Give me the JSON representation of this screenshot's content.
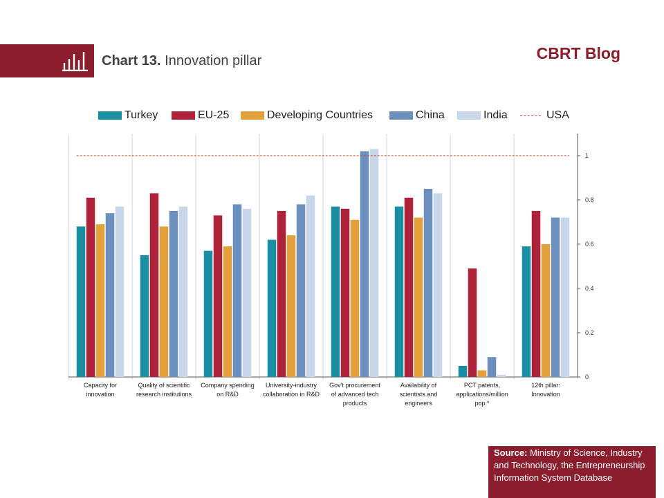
{
  "header": {
    "chart_number": "Chart 13.",
    "chart_name": "Innovation pillar",
    "brand": "CBRT Blog",
    "icon": "bar-chart-icon"
  },
  "colors": {
    "brand": "#8c1d2c",
    "turkey": "#1a8fa4",
    "eu25": "#b0223a",
    "developing": "#e4a03a",
    "china": "#6b90bd",
    "india": "#c7d6e8",
    "usa": "#c0392b"
  },
  "source": {
    "label": "Source:",
    "text": "Ministry of Science, Industry and Technology, the Entrepreneurship Information System Database"
  },
  "chart_data": {
    "type": "bar",
    "categories": [
      [
        "Capacity for",
        "innovation"
      ],
      [
        "Quality of scientific",
        "research institutions"
      ],
      [
        "Company spending",
        "on R&D"
      ],
      [
        "University-industry",
        "collaboration in R&D"
      ],
      [
        "Gov't procurement",
        "of advanced tech",
        "products"
      ],
      [
        "Availability of",
        "scientists and",
        "engineers"
      ],
      [
        "PCT patents,",
        "applications/million",
        "pop.*"
      ],
      [
        "12th pillar:",
        "Innovation"
      ]
    ],
    "series": [
      {
        "name": "Turkey",
        "color": "#1a8fa4",
        "values": [
          0.68,
          0.55,
          0.57,
          0.62,
          0.77,
          0.77,
          0.05,
          0.59
        ]
      },
      {
        "name": "EU-25",
        "color": "#b0223a",
        "values": [
          0.81,
          0.83,
          0.73,
          0.75,
          0.76,
          0.81,
          0.49,
          0.75
        ]
      },
      {
        "name": "Developing Countries",
        "color": "#e4a03a",
        "values": [
          0.69,
          0.68,
          0.59,
          0.64,
          0.71,
          0.72,
          0.03,
          0.6
        ]
      },
      {
        "name": "China",
        "color": "#6b90bd",
        "values": [
          0.74,
          0.75,
          0.78,
          0.78,
          1.02,
          0.85,
          0.09,
          0.72
        ]
      },
      {
        "name": "India",
        "color": "#c7d6e8",
        "values": [
          0.77,
          0.77,
          0.76,
          0.82,
          1.03,
          0.83,
          0.01,
          0.72
        ]
      }
    ],
    "reference_line": {
      "name": "USA",
      "value": 1.0,
      "color": "#c0392b",
      "style": "dashed"
    },
    "y_ticks": [
      "0",
      "0.2",
      "0.4",
      "0.6",
      "0.8",
      "1"
    ],
    "ylim": [
      0,
      1.1
    ],
    "y_axis_side": "right",
    "legend_position": "top",
    "grid": "vertical category separators"
  }
}
